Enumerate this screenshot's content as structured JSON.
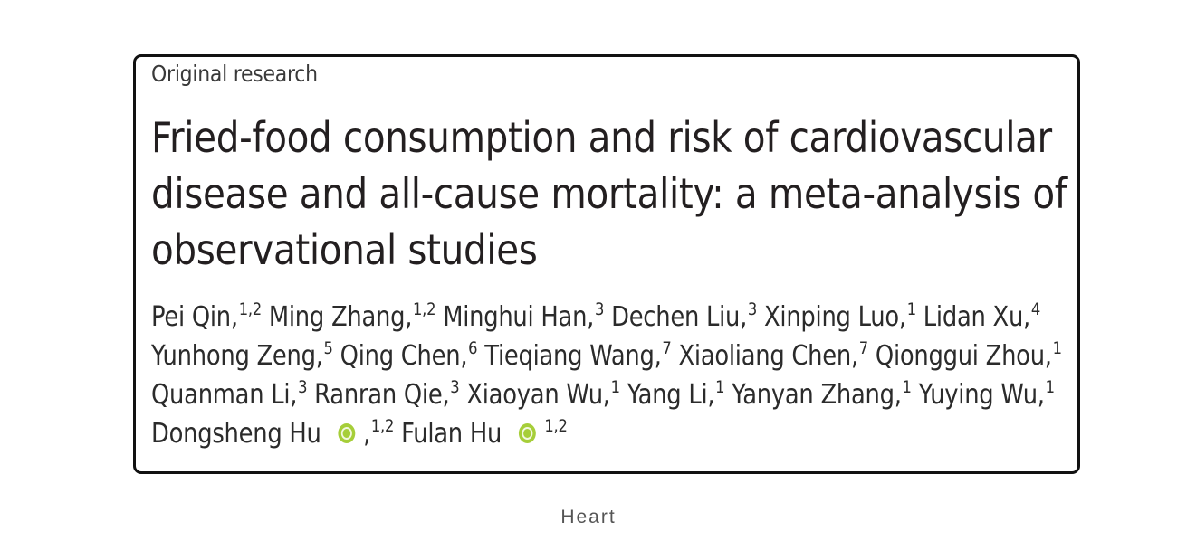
{
  "article": {
    "type": "Original research",
    "title_lines": [
      "Fried-food consumption and risk of cardiovascular",
      "disease and all-cause mortality: a meta-analysis of",
      "observational studies"
    ],
    "authors": [
      {
        "name": "Pei Qin,",
        "aff": "1,2"
      },
      {
        "name": "Ming Zhang,",
        "aff": "1,2"
      },
      {
        "name": "Minghui Han,",
        "aff": "3"
      },
      {
        "name": "Dechen Liu,",
        "aff": "3"
      },
      {
        "name": "Xinping Luo,",
        "aff": "1"
      },
      {
        "name": "Lidan Xu,",
        "aff": "4"
      },
      {
        "name": "Yunhong Zeng,",
        "aff": "5"
      },
      {
        "name": "Qing Chen,",
        "aff": "6"
      },
      {
        "name": "Tieqiang Wang,",
        "aff": "7"
      },
      {
        "name": "Xiaoliang Chen,",
        "aff": "7"
      },
      {
        "name": "Qionggui Zhou,",
        "aff": "1"
      },
      {
        "name": "Quanman Li,",
        "aff": "3"
      },
      {
        "name": "Ranran Qie,",
        "aff": "3"
      },
      {
        "name": "Xiaoyan Wu,",
        "aff": "1"
      },
      {
        "name": "Yang Li,",
        "aff": "1"
      },
      {
        "name": "Yanyan Zhang,",
        "aff": "1"
      },
      {
        "name": "Yuying Wu,",
        "aff": "1"
      },
      {
        "name": "Dongsheng Hu",
        "aff": "1,2"
      },
      {
        "name": "Fulan Hu",
        "aff": "1,2"
      }
    ],
    "comma": ","
  },
  "caption": {
    "source": "Heart"
  },
  "colors": {
    "orcid": "#a6ce39",
    "border": "#111111",
    "title": "#231f20"
  },
  "icons": {
    "orcid": "orcid-icon"
  }
}
